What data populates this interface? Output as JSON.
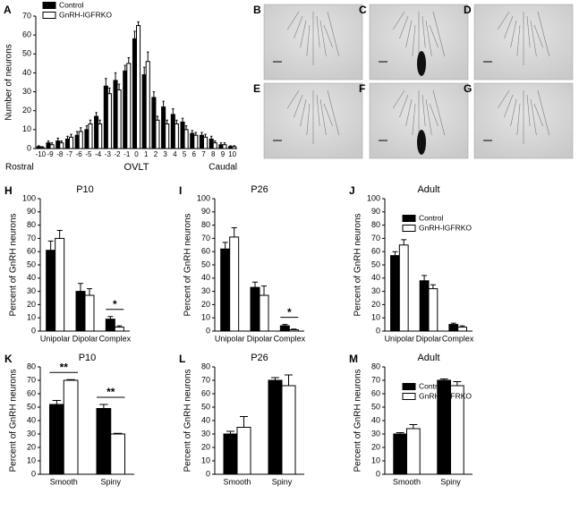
{
  "chart_data": [
    {
      "type": "bar",
      "panel": "A",
      "ylabel": "Number of neurons",
      "xlabel": "OVLT",
      "xlabel_left": "Rostral",
      "xlabel_right": "Caudal",
      "categories": [
        "-10",
        "-9",
        "-8",
        "-7",
        "-6",
        "-5",
        "-4",
        "-3",
        "-2",
        "-1",
        "0",
        "1",
        "2",
        "3",
        "4",
        "5",
        "6",
        "7",
        "8",
        "9",
        "10"
      ],
      "series": [
        {
          "name": "Control",
          "color": "#000000",
          "values": [
            1,
            3,
            4,
            5,
            7,
            10,
            17,
            33,
            36,
            41,
            58,
            39,
            27,
            22,
            18,
            14,
            8,
            7,
            5,
            2,
            1
          ],
          "errors": [
            0.5,
            1,
            1.5,
            1.5,
            2,
            2,
            2,
            4,
            4,
            3,
            4,
            4,
            3,
            3,
            3,
            2,
            1.5,
            1.5,
            1.5,
            1,
            0.5
          ]
        },
        {
          "name": "GnRH-IGFRKO",
          "color": "#ffffff",
          "values": [
            0.5,
            2,
            3,
            6,
            9,
            13,
            13,
            29,
            31,
            45,
            65,
            46,
            15,
            13,
            13,
            10,
            7,
            6,
            3,
            2,
            1
          ],
          "errors": [
            0.5,
            1,
            1,
            1.5,
            2,
            2,
            2,
            3,
            3,
            3,
            2,
            5,
            2,
            2,
            2,
            2,
            1.5,
            1.5,
            1,
            1,
            0.5
          ]
        }
      ],
      "ylim": [
        0,
        70
      ],
      "yticks": [
        0,
        10,
        20,
        30,
        40,
        50,
        60,
        70
      ],
      "legend": "upper left"
    },
    {
      "type": "bar",
      "panel": "H",
      "title": "P10",
      "ylabel": "Percent of GnRH neurons",
      "categories": [
        "Unipolar",
        "Dipolar",
        "Complex"
      ],
      "series": [
        {
          "name": "Control",
          "color": "#000000",
          "values": [
            61,
            30,
            9
          ],
          "errors": [
            7,
            6,
            2
          ]
        },
        {
          "name": "GnRH-IGFRKO",
          "color": "#ffffff",
          "values": [
            70,
            27,
            3
          ],
          "errors": [
            6,
            5,
            1
          ]
        }
      ],
      "ylim": [
        0,
        100
      ],
      "yticks": [
        0,
        10,
        20,
        30,
        40,
        50,
        60,
        70,
        80,
        90,
        100
      ],
      "significance": [
        {
          "category": "Complex",
          "label": "*"
        }
      ]
    },
    {
      "type": "bar",
      "panel": "I",
      "title": "P26",
      "ylabel": "Percent of GnRH neurons",
      "categories": [
        "Unipolar",
        "Dipolar",
        "Complex"
      ],
      "series": [
        {
          "name": "Control",
          "color": "#000000",
          "values": [
            62,
            33,
            4
          ],
          "errors": [
            5,
            4,
            1
          ]
        },
        {
          "name": "GnRH-IGFRKO",
          "color": "#ffffff",
          "values": [
            71,
            27,
            1
          ],
          "errors": [
            7,
            7,
            0.5
          ]
        }
      ],
      "ylim": [
        0,
        100
      ],
      "yticks": [
        0,
        10,
        20,
        30,
        40,
        50,
        60,
        70,
        80,
        90,
        100
      ],
      "significance": [
        {
          "category": "Complex",
          "label": "*"
        }
      ]
    },
    {
      "type": "bar",
      "panel": "J",
      "title": "Adult",
      "ylabel": "Percent of GnRH neurons",
      "categories": [
        "Unipolar",
        "Dipolar",
        "Complex"
      ],
      "series": [
        {
          "name": "Control",
          "color": "#000000",
          "values": [
            57,
            38,
            5
          ],
          "errors": [
            3,
            4,
            1
          ]
        },
        {
          "name": "GnRH-IGFRKO",
          "color": "#ffffff",
          "values": [
            65,
            32,
            3
          ],
          "errors": [
            4,
            3,
            1
          ]
        }
      ],
      "ylim": [
        0,
        100
      ],
      "yticks": [
        0,
        10,
        20,
        30,
        40,
        50,
        60,
        70,
        80,
        90,
        100
      ],
      "legend": "upper right"
    },
    {
      "type": "bar",
      "panel": "K",
      "title": "P10",
      "ylabel": "Percent of GnRH neurons",
      "categories": [
        "Smooth",
        "Spiny"
      ],
      "series": [
        {
          "name": "Control",
          "color": "#000000",
          "values": [
            52,
            49
          ],
          "errors": [
            3,
            3
          ]
        },
        {
          "name": "GnRH-IGFRKO",
          "color": "#ffffff",
          "values": [
            70,
            30
          ],
          "errors": [
            0.5,
            0.5
          ]
        }
      ],
      "ylim": [
        0,
        80
      ],
      "yticks": [
        0,
        10,
        20,
        30,
        40,
        50,
        60,
        70,
        80
      ],
      "significance": [
        {
          "category": "Smooth",
          "label": "**"
        },
        {
          "category": "Spiny",
          "label": "**"
        }
      ]
    },
    {
      "type": "bar",
      "panel": "L",
      "title": "P26",
      "ylabel": "Percent of GnRH neurons",
      "categories": [
        "Smooth",
        "Spiny"
      ],
      "series": [
        {
          "name": "Control",
          "color": "#000000",
          "values": [
            30,
            70
          ],
          "errors": [
            2,
            2
          ]
        },
        {
          "name": "GnRH-IGFRKO",
          "color": "#ffffff",
          "values": [
            35,
            66
          ],
          "errors": [
            8,
            8
          ]
        }
      ],
      "ylim": [
        0,
        80
      ],
      "yticks": [
        0,
        10,
        20,
        30,
        40,
        50,
        60,
        70,
        80
      ]
    },
    {
      "type": "bar",
      "panel": "M",
      "title": "Adult",
      "ylabel": "Percent of GnRH neurons",
      "categories": [
        "Smooth",
        "Spiny"
      ],
      "series": [
        {
          "name": "Control",
          "color": "#000000",
          "values": [
            30,
            70
          ],
          "errors": [
            1,
            1
          ]
        },
        {
          "name": "GnRH-IGFRKO",
          "color": "#ffffff",
          "values": [
            34,
            66
          ],
          "errors": [
            3,
            3
          ]
        }
      ],
      "ylim": [
        0,
        80
      ],
      "yticks": [
        0,
        10,
        20,
        30,
        40,
        50,
        60,
        70,
        80
      ],
      "legend": "upper right"
    }
  ],
  "micrographs": [
    {
      "panel": "B"
    },
    {
      "panel": "C"
    },
    {
      "panel": "D"
    },
    {
      "panel": "E"
    },
    {
      "panel": "F"
    },
    {
      "panel": "G"
    }
  ]
}
